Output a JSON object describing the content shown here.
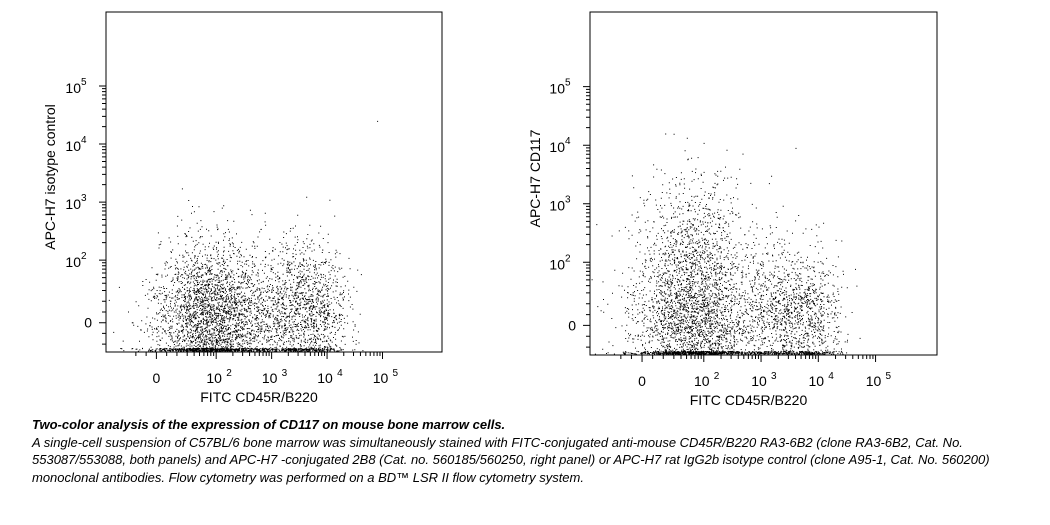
{
  "chart_data": [
    {
      "type": "scatter",
      "xlabel": "FITC CD45R/B220",
      "ylabel": "APC-H7 isotype control",
      "axis_scale": "biexponential",
      "x_tick_labels": [
        {
          "base": "0",
          "exp": ""
        },
        {
          "base": "10",
          "exp": "2"
        },
        {
          "base": "10",
          "exp": "3"
        },
        {
          "base": "10",
          "exp": "4"
        },
        {
          "base": "10",
          "exp": "5"
        }
      ],
      "y_tick_labels": [
        {
          "base": "0",
          "exp": ""
        },
        {
          "base": "10",
          "exp": "2"
        },
        {
          "base": "10",
          "exp": "3"
        },
        {
          "base": "10",
          "exp": "4"
        },
        {
          "base": "10",
          "exp": "5"
        }
      ],
      "xlim_decades": [
        -0.9,
        5.1
      ],
      "ylim_decades": [
        -0.5,
        5.3
      ],
      "populations": [
        {
          "x_center": 80,
          "y_center": 5,
          "x_spread": 0.33,
          "y_spread": 0.42,
          "count": 3000
        },
        {
          "x_center": 2500,
          "y_center": 5,
          "x_spread": 0.25,
          "y_spread": 0.42,
          "count": 1200
        },
        {
          "x_center": 9000,
          "y_center": 5,
          "x_spread": 0.15,
          "y_spread": 0.35,
          "count": 350
        }
      ],
      "outliers": [
        {
          "x": 80000,
          "y": 25000
        },
        {
          "x": 11000,
          "y": 1100
        }
      ]
    },
    {
      "type": "scatter",
      "xlabel": "FITC CD45R/B220",
      "ylabel": "APC-H7 CD117",
      "axis_scale": "biexponential",
      "x_tick_labels": [
        {
          "base": "0",
          "exp": ""
        },
        {
          "base": "10",
          "exp": "2"
        },
        {
          "base": "10",
          "exp": "3"
        },
        {
          "base": "10",
          "exp": "4"
        },
        {
          "base": "10",
          "exp": "5"
        }
      ],
      "y_tick_labels": [
        {
          "base": "0",
          "exp": ""
        },
        {
          "base": "10",
          "exp": "2"
        },
        {
          "base": "10",
          "exp": "3"
        },
        {
          "base": "10",
          "exp": "4"
        },
        {
          "base": "10",
          "exp": "5"
        }
      ],
      "xlim_decades": [
        -0.9,
        5.1
      ],
      "ylim_decades": [
        -0.5,
        5.3
      ],
      "populations": [
        {
          "x_center": 70,
          "y_center": 5,
          "x_spread": 0.33,
          "y_spread": 0.5,
          "count": 2900
        },
        {
          "x_center": 70,
          "y_center": 400,
          "x_spread": 0.3,
          "y_spread": 0.35,
          "count": 450
        },
        {
          "x_center": 2500,
          "y_center": 5,
          "x_spread": 0.25,
          "y_spread": 0.45,
          "count": 1100
        },
        {
          "x_center": 9000,
          "y_center": 5,
          "x_spread": 0.15,
          "y_spread": 0.35,
          "count": 320
        }
      ],
      "outliers": [
        {
          "x": 4000,
          "y": 9000
        },
        {
          "x": 1500,
          "y": 3000
        }
      ]
    }
  ],
  "caption": {
    "title": "Two-color analysis of the expression of CD117 on mouse bone marrow cells.",
    "body": "A single-cell suspension of C57BL/6 bone marrow was simultaneously stained with FITC-conjugated anti-mouse CD45R/B220 RA3-6B2 (clone RA3-6B2, Cat. No. 553087/553088, both panels) and APC-H7 -conjugated 2B8 (Cat. no. 560185/560250, right panel) or APC-H7 rat IgG2b isotype control (clone A95-1, Cat. No. 560200) monoclonal antibodies. Flow cytometry was performed on a BD™ LSR II flow cytometry system."
  }
}
